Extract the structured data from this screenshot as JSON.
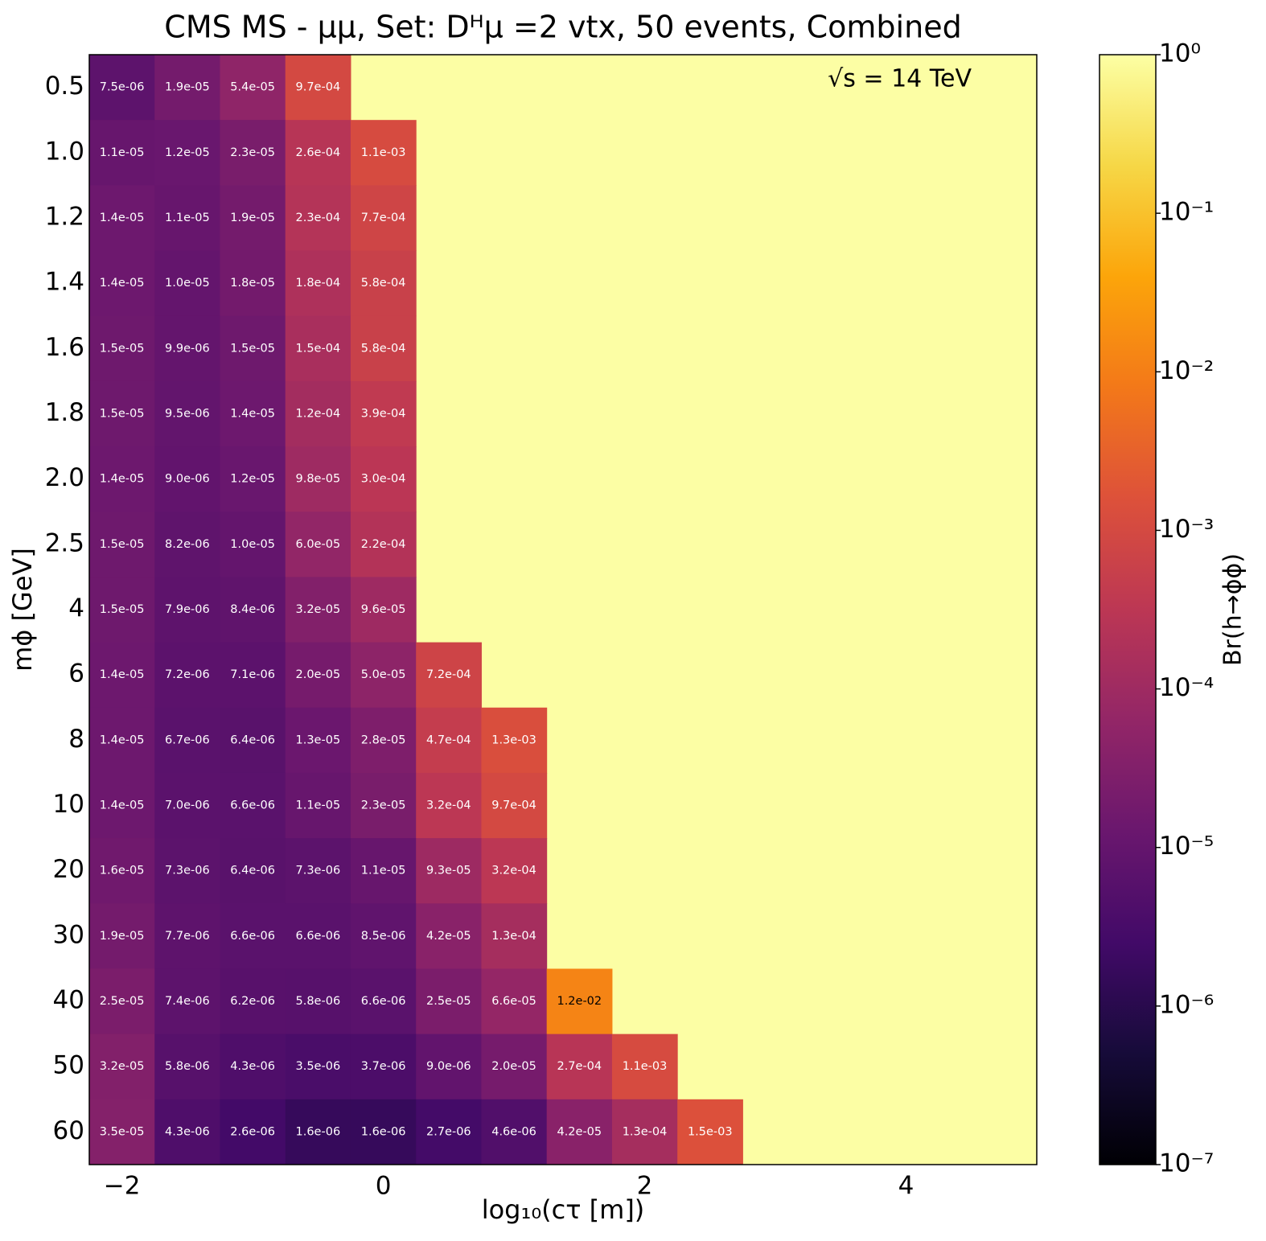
{
  "chart_data": {
    "type": "heatmap",
    "title": "CMS MS - μμ, Set: Dᴴμ =2 vtx, 50 events, Combined",
    "annotation": "√s = 14 TeV",
    "xlabel": "log₁₀(cτ [m])",
    "ylabel": "mϕ [GeV]",
    "colorbar_label": "Br(h→ϕϕ)",
    "colormap": "inferno",
    "missing_color": "#fcfea4",
    "log_scale": true,
    "xlim": [
      -2.25,
      5
    ],
    "xticks": [
      {
        "value": -2,
        "label": "−2"
      },
      0,
      2,
      4
    ],
    "x": [
      -2,
      -1.5,
      -1,
      -0.5,
      0,
      0.5,
      1,
      1.5,
      2,
      2.5
    ],
    "categories": [
      "0.5",
      "1.0",
      "1.2",
      "1.4",
      "1.6",
      "1.8",
      "2.0",
      "2.5",
      "4",
      "6",
      "8",
      "10",
      "20",
      "30",
      "40",
      "50",
      "60"
    ],
    "clim": [
      1e-07,
      1
    ],
    "cticks": [
      {
        "value": 1,
        "label": "10⁰"
      },
      {
        "value": 0.1,
        "label": "10⁻¹"
      },
      {
        "value": 0.01,
        "label": "10⁻²"
      },
      {
        "value": 0.001,
        "label": "10⁻³"
      },
      {
        "value": 0.0001,
        "label": "10⁻⁴"
      },
      {
        "value": 1e-05,
        "label": "10⁻⁵"
      },
      {
        "value": 1e-06,
        "label": "10⁻⁶"
      },
      {
        "value": 1e-07,
        "label": "10⁻⁷"
      }
    ],
    "values": [
      [
        7.5e-06,
        1.9e-05,
        5.4e-05,
        0.00097,
        null,
        null,
        null,
        null,
        null,
        null
      ],
      [
        1.1e-05,
        1.2e-05,
        2.3e-05,
        0.00026,
        0.0011,
        null,
        null,
        null,
        null,
        null
      ],
      [
        1.4e-05,
        1.1e-05,
        1.9e-05,
        0.00023,
        0.00077,
        null,
        null,
        null,
        null,
        null
      ],
      [
        1.4e-05,
        1e-05,
        1.8e-05,
        0.00018,
        0.00058,
        null,
        null,
        null,
        null,
        null
      ],
      [
        1.5e-05,
        9.9e-06,
        1.5e-05,
        0.00015,
        0.00058,
        null,
        null,
        null,
        null,
        null
      ],
      [
        1.5e-05,
        9.5e-06,
        1.4e-05,
        0.00012,
        0.00039,
        null,
        null,
        null,
        null,
        null
      ],
      [
        1.4e-05,
        9e-06,
        1.2e-05,
        9.8e-05,
        0.0003,
        null,
        null,
        null,
        null,
        null
      ],
      [
        1.5e-05,
        8.2e-06,
        1e-05,
        6e-05,
        0.00022,
        null,
        null,
        null,
        null,
        null
      ],
      [
        1.5e-05,
        7.9e-06,
        8.4e-06,
        3.2e-05,
        9.6e-05,
        null,
        null,
        null,
        null,
        null
      ],
      [
        1.4e-05,
        7.2e-06,
        7.1e-06,
        2e-05,
        5e-05,
        0.00072,
        null,
        null,
        null,
        null
      ],
      [
        1.4e-05,
        6.7e-06,
        6.4e-06,
        1.3e-05,
        2.8e-05,
        0.00047,
        0.0013,
        null,
        null,
        null
      ],
      [
        1.4e-05,
        7e-06,
        6.6e-06,
        1.1e-05,
        2.3e-05,
        0.00032,
        0.00097,
        null,
        null,
        null
      ],
      [
        1.6e-05,
        7.3e-06,
        6.4e-06,
        7.3e-06,
        1.1e-05,
        9.3e-05,
        0.00032,
        null,
        null,
        null
      ],
      [
        1.9e-05,
        7.7e-06,
        6.6e-06,
        6.6e-06,
        8.5e-06,
        4.2e-05,
        0.00013,
        null,
        null,
        null
      ],
      [
        2.5e-05,
        7.4e-06,
        6.2e-06,
        5.8e-06,
        6.6e-06,
        2.5e-05,
        6.6e-05,
        0.012,
        null,
        null
      ],
      [
        3.2e-05,
        5.8e-06,
        4.3e-06,
        3.5e-06,
        3.7e-06,
        9e-06,
        2e-05,
        0.00027,
        0.0011,
        null
      ],
      [
        3.5e-05,
        4.3e-06,
        2.6e-06,
        1.6e-06,
        1.6e-06,
        2.7e-06,
        4.6e-06,
        4.2e-05,
        0.00013,
        0.0015
      ]
    ],
    "value_labels": [
      [
        "7.5e-06",
        "1.9e-05",
        "5.4e-05",
        "9.7e-04",
        null,
        null,
        null,
        null,
        null,
        null
      ],
      [
        "1.1e-05",
        "1.2e-05",
        "2.3e-05",
        "2.6e-04",
        "1.1e-03",
        null,
        null,
        null,
        null,
        null
      ],
      [
        "1.4e-05",
        "1.1e-05",
        "1.9e-05",
        "2.3e-04",
        "7.7e-04",
        null,
        null,
        null,
        null,
        null
      ],
      [
        "1.4e-05",
        "1.0e-05",
        "1.8e-05",
        "1.8e-04",
        "5.8e-04",
        null,
        null,
        null,
        null,
        null
      ],
      [
        "1.5e-05",
        "9.9e-06",
        "1.5e-05",
        "1.5e-04",
        "5.8e-04",
        null,
        null,
        null,
        null,
        null
      ],
      [
        "1.5e-05",
        "9.5e-06",
        "1.4e-05",
        "1.2e-04",
        "3.9e-04",
        null,
        null,
        null,
        null,
        null
      ],
      [
        "1.4e-05",
        "9.0e-06",
        "1.2e-05",
        "9.8e-05",
        "3.0e-04",
        null,
        null,
        null,
        null,
        null
      ],
      [
        "1.5e-05",
        "8.2e-06",
        "1.0e-05",
        "6.0e-05",
        "2.2e-04",
        null,
        null,
        null,
        null,
        null
      ],
      [
        "1.5e-05",
        "7.9e-06",
        "8.4e-06",
        "3.2e-05",
        "9.6e-05",
        null,
        null,
        null,
        null,
        null
      ],
      [
        "1.4e-05",
        "7.2e-06",
        "7.1e-06",
        "2.0e-05",
        "5.0e-05",
        "7.2e-04",
        null,
        null,
        null,
        null
      ],
      [
        "1.4e-05",
        "6.7e-06",
        "6.4e-06",
        "1.3e-05",
        "2.8e-05",
        "4.7e-04",
        "1.3e-03",
        null,
        null,
        null
      ],
      [
        "1.4e-05",
        "7.0e-06",
        "6.6e-06",
        "1.1e-05",
        "2.3e-05",
        "3.2e-04",
        "9.7e-04",
        null,
        null,
        null
      ],
      [
        "1.6e-05",
        "7.3e-06",
        "6.4e-06",
        "7.3e-06",
        "1.1e-05",
        "9.3e-05",
        "3.2e-04",
        null,
        null,
        null
      ],
      [
        "1.9e-05",
        "7.7e-06",
        "6.6e-06",
        "6.6e-06",
        "8.5e-06",
        "4.2e-05",
        "1.3e-04",
        null,
        null,
        null
      ],
      [
        "2.5e-05",
        "7.4e-06",
        "6.2e-06",
        "5.8e-06",
        "6.6e-06",
        "2.5e-05",
        "6.6e-05",
        "1.2e-02",
        null,
        null
      ],
      [
        "3.2e-05",
        "5.8e-06",
        "4.3e-06",
        "3.5e-06",
        "3.7e-06",
        "9.0e-06",
        "2.0e-05",
        "2.7e-04",
        "1.1e-03",
        null
      ],
      [
        "3.5e-05",
        "4.3e-06",
        "2.6e-06",
        "1.6e-06",
        "1.6e-06",
        "2.7e-06",
        "4.6e-06",
        "4.2e-05",
        "1.3e-04",
        "1.5e-03"
      ]
    ]
  }
}
